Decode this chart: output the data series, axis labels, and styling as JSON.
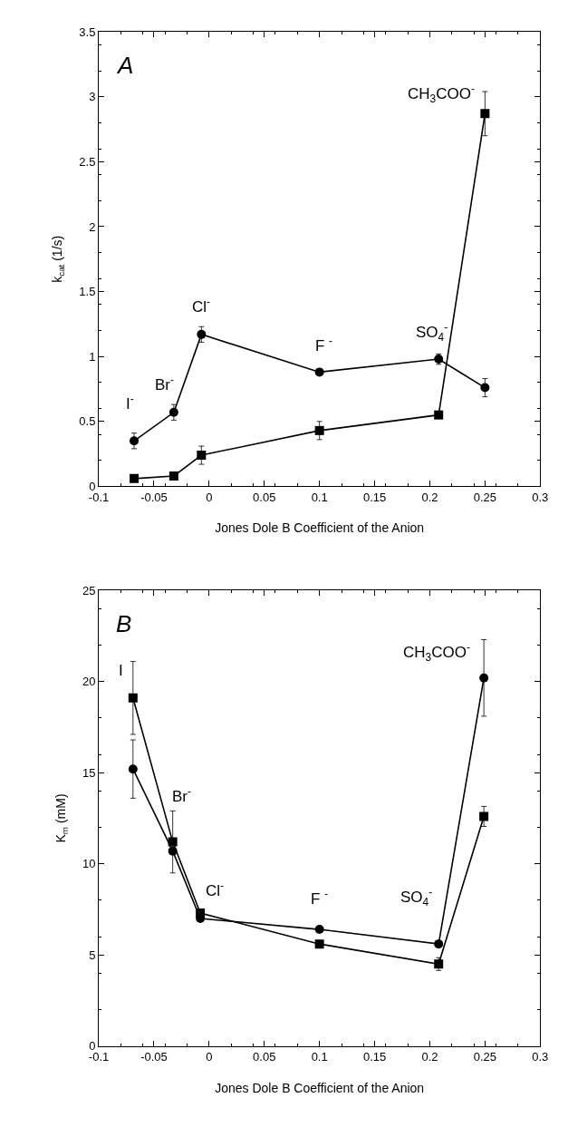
{
  "chart_data": [
    {
      "type": "line",
      "xlabel": "Jones Dole B Coefficient of the Anion",
      "ylabel": "k$_{cat}$ (1/s)",
      "xlim": [
        -0.1,
        0.3
      ],
      "xticks": [
        -0.1,
        -0.05,
        0,
        0.05,
        0.1,
        0.15,
        0.2,
        0.25,
        0.3
      ],
      "ylim": [
        0,
        3.5
      ],
      "yticks": [
        0,
        0.5,
        1,
        1.5,
        2,
        2.5,
        3,
        3.5
      ],
      "line_style": "solid",
      "annotations": [
        "A",
        {
          "text": "I$^{-}$",
          "x": -0.068,
          "y": 0.35
        },
        {
          "text": "Br$^{-}$",
          "x": -0.032,
          "y": 0.57
        },
        {
          "text": "Cl$^{-}$",
          "x": -0.007,
          "y": 1.17
        },
        {
          "text": "F $^{-}$",
          "x": 0.1,
          "y": 0.88
        },
        {
          "text": "SO$_{4}$$^{-}$",
          "x": 0.208,
          "y": 0.98
        },
        {
          "text": "CH$_{3}$COO$^{-}$",
          "x": 0.25,
          "y": 2.87
        }
      ],
      "series": [
        {
          "color": "#000000",
          "marker": "circle",
          "x": [
            -0.068,
            -0.032,
            -0.007,
            0.1,
            0.208,
            0.25
          ],
          "values": [
            0.35,
            0.57,
            1.17,
            0.88,
            0.98,
            0.76
          ],
          "errors": [
            0.06,
            0.06,
            0.06,
            null,
            0.04,
            0.07
          ]
        },
        {
          "color": "#000000",
          "marker": "square",
          "x": [
            -0.068,
            -0.032,
            -0.007,
            0.1,
            0.208,
            0.25
          ],
          "values": [
            0.06,
            0.08,
            0.24,
            0.43,
            0.55,
            2.87
          ],
          "errors": [
            null,
            null,
            0.07,
            0.07,
            null,
            0.17
          ]
        }
      ]
    },
    {
      "type": "line",
      "xlabel": "Jones Dole B Coefficient of the Anion",
      "ylabel": "K$_{m}$ (mM)",
      "xlim": [
        -0.1,
        0.3
      ],
      "xticks": [
        -0.1,
        -0.05,
        0,
        0.05,
        0.1,
        0.15,
        0.2,
        0.25,
        0.3
      ],
      "ylim": [
        0,
        25
      ],
      "yticks": [
        0,
        5,
        10,
        15,
        20,
        25
      ],
      "line_style": "solid",
      "annotations": [
        "B",
        {
          "text": "I",
          "x": -0.069,
          "y": 19.1
        },
        {
          "text": "Br$^{-}$",
          "x": -0.033,
          "y": 11.2
        },
        {
          "text": "Cl$^{-}$",
          "x": -0.008,
          "y": 7.3
        },
        {
          "text": "F $^{-}$",
          "x": 0.1,
          "y": 6.4
        },
        {
          "text": "SO$_{4}$$^{-}$",
          "x": 0.208,
          "y": 5.6
        },
        {
          "text": "CH$_{3}$COO$^{-}$",
          "x": 0.249,
          "y": 20.2
        }
      ],
      "series": [
        {
          "color": "#000000",
          "marker": "circle",
          "x": [
            -0.069,
            -0.033,
            -0.008,
            0.1,
            0.208,
            0.249
          ],
          "values": [
            15.2,
            10.7,
            7.0,
            6.4,
            5.6,
            20.2
          ],
          "errors": [
            1.6,
            null,
            null,
            null,
            null,
            2.1
          ]
        },
        {
          "color": "#000000",
          "marker": "square",
          "x": [
            -0.069,
            -0.033,
            -0.008,
            0.1,
            0.208,
            0.249
          ],
          "values": [
            19.1,
            11.2,
            7.3,
            5.6,
            4.5,
            12.6
          ],
          "errors": [
            2.0,
            1.7,
            null,
            null,
            0.35,
            0.55
          ]
        }
      ]
    }
  ]
}
